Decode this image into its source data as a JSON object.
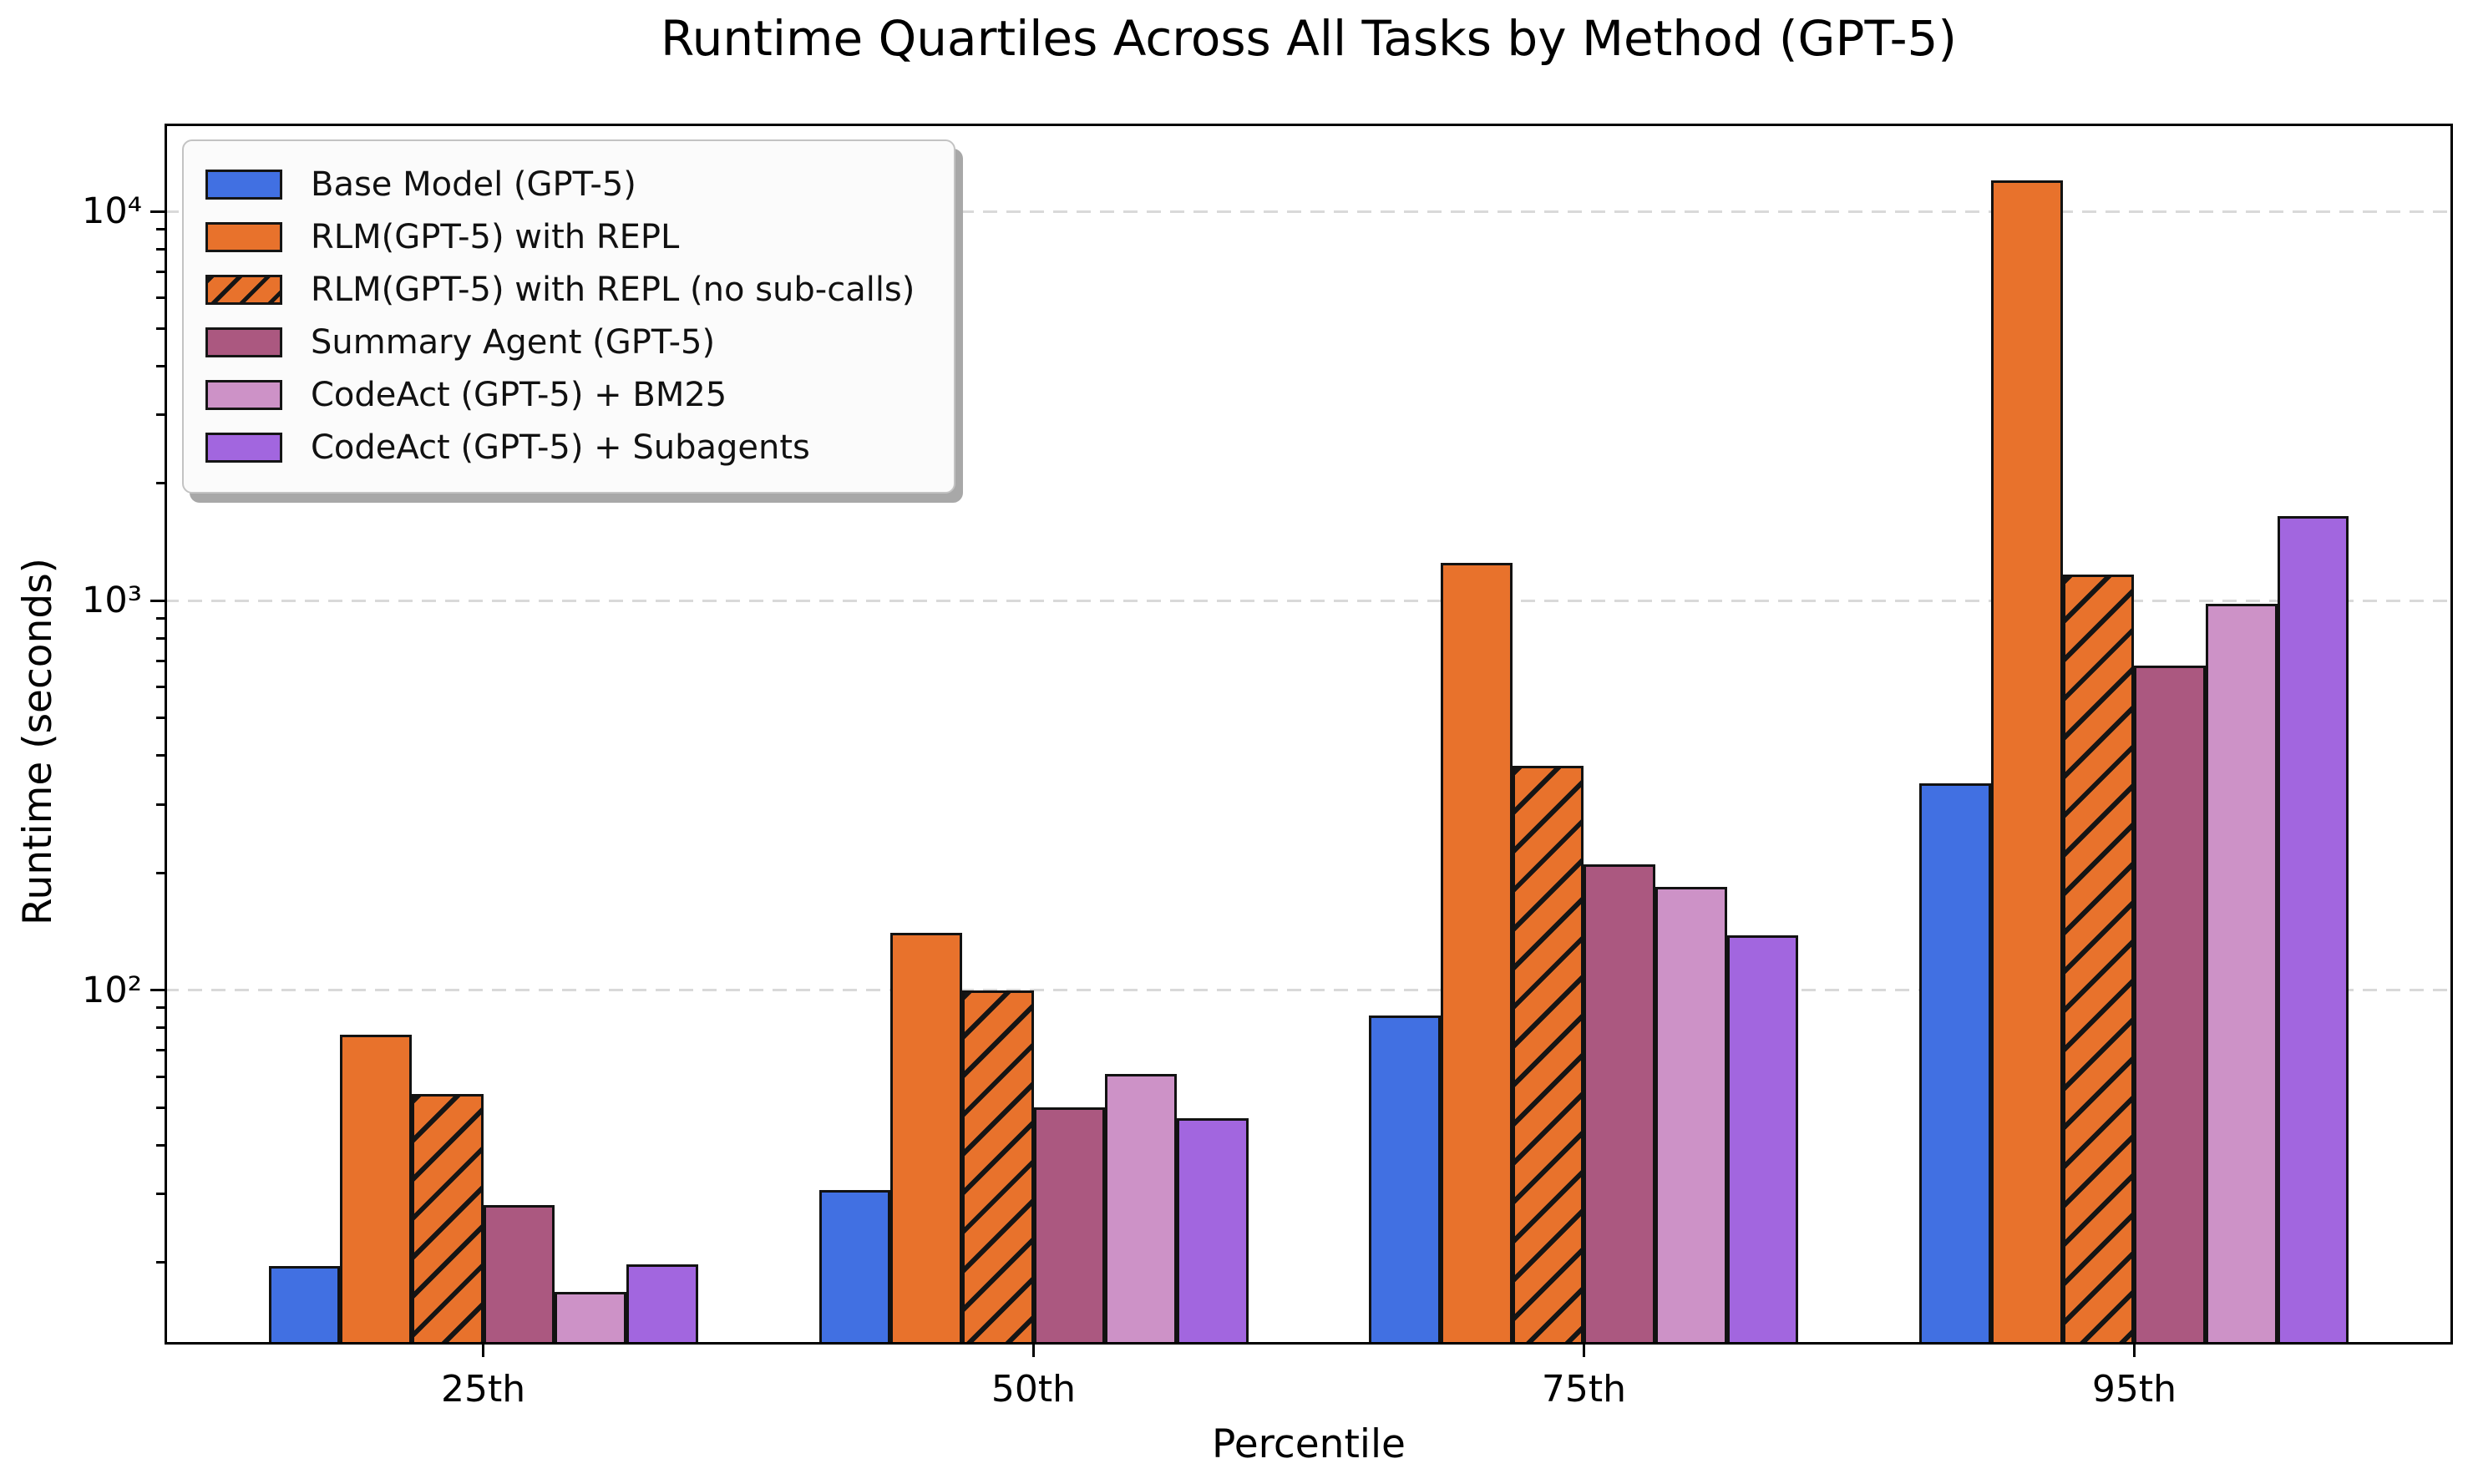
{
  "title": "Runtime Quartiles Across All Tasks by Method (GPT-5)",
  "chart_data": {
    "type": "bar",
    "title": "Runtime Quartiles Across All Tasks by Method (GPT-5)",
    "xlabel": "Percentile",
    "ylabel": "Runtime (seconds)",
    "yscale": "log",
    "ylim": [
      12.3,
      16800
    ],
    "grid": "horizontal dashed gridlines at powers of 10",
    "legend_position": "upper left",
    "categories": [
      "25th",
      "50th",
      "75th",
      "95th"
    ],
    "yticks": [
      {
        "value": 100,
        "label": "10²"
      },
      {
        "value": 1000,
        "label": "10³"
      },
      {
        "value": 10000,
        "label": "10⁴"
      }
    ],
    "series": [
      {
        "name": "Base Model (GPT-5)",
        "color": "#4170E2",
        "hatch": false,
        "values": [
          19.6,
          30.6,
          86,
          340
        ]
      },
      {
        "name": "RLM(GPT-5) with REPL",
        "color": "#E8722C",
        "hatch": false,
        "values": [
          77,
          140,
          1250,
          12000
        ]
      },
      {
        "name": "RLM(GPT-5) with REPL (no sub-calls)",
        "color": "#E8722C",
        "hatch": true,
        "values": [
          54,
          100,
          376,
          1170
        ]
      },
      {
        "name": "Summary Agent (GPT-5)",
        "color": "#AB5880",
        "hatch": false,
        "values": [
          28,
          50,
          210,
          680
        ]
      },
      {
        "name": "CodeAct (GPT-5) + BM25",
        "color": "#CD92C7",
        "hatch": false,
        "values": [
          16.8,
          61,
          184,
          980
        ]
      },
      {
        "name": "CodeAct (GPT-5) + Subagents",
        "color": "#A266DF",
        "hatch": false,
        "values": [
          19.8,
          47,
          138,
          1650
        ]
      }
    ]
  }
}
